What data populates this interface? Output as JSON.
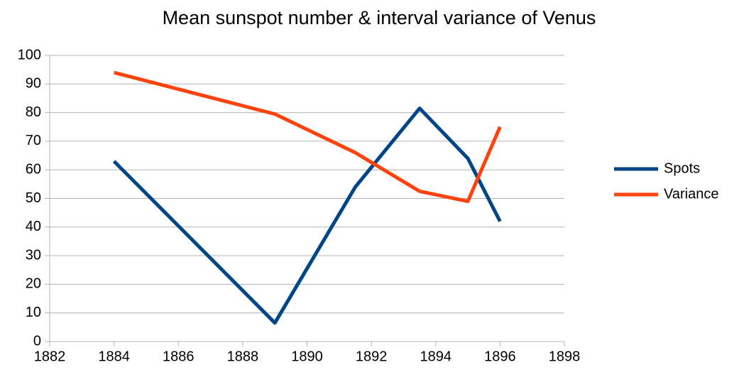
{
  "chart_data": {
    "type": "line",
    "title": "Mean sunspot number & interval variance of Venus",
    "x": [
      1884,
      1889,
      1891.5,
      1893.5,
      1895,
      1896
    ],
    "series": [
      {
        "name": "Spots",
        "color": "#004586",
        "values": [
          63,
          6.5,
          54,
          81.5,
          64,
          42
        ]
      },
      {
        "name": "Variance",
        "color": "#ff420e",
        "values": [
          94,
          79.5,
          66,
          52.5,
          49,
          75
        ]
      }
    ],
    "xlim": [
      1882,
      1898
    ],
    "xticks": [
      1882,
      1884,
      1886,
      1888,
      1890,
      1892,
      1894,
      1896,
      1898
    ],
    "ylim": [
      0,
      100
    ],
    "yticks": [
      0,
      10,
      20,
      30,
      40,
      50,
      60,
      70,
      80,
      90,
      100
    ],
    "grid": true,
    "legend": "right"
  }
}
